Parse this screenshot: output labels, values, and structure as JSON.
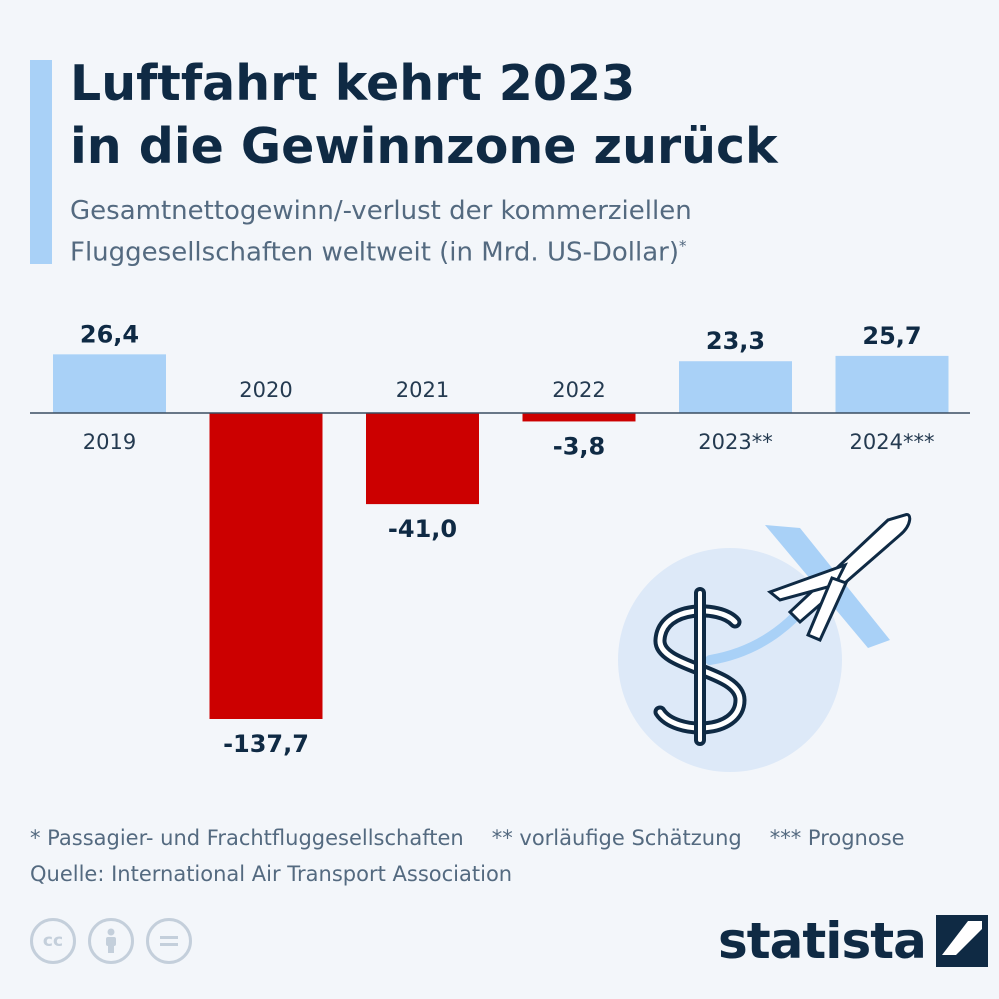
{
  "header": {
    "title_line1": "Luftfahrt kehrt 2023",
    "title_line2": "in die Gewinnzone zurück",
    "subtitle_line1": "Gesamtnettogewinn/-verlust der kommerziellen",
    "subtitle_line2": "Fluggesellschaften weltweit (in Mrd. US-Dollar)",
    "subtitle_mark": "*"
  },
  "chart_data": {
    "type": "bar",
    "categories": [
      "2019",
      "2020",
      "2021",
      "2022",
      "2023**",
      "2024***"
    ],
    "values": [
      26.4,
      -137.7,
      -41.0,
      -3.8,
      23.3,
      25.7
    ],
    "value_labels": [
      "26,4",
      "-137,7",
      "-41,0",
      "-3,8",
      "23,3",
      "25,7"
    ],
    "colors": {
      "positive": "#a9d1f7",
      "negative": "#cc0000"
    },
    "ylim": [
      -140,
      30
    ],
    "grid": false,
    "title": "",
    "xlabel": "",
    "ylabel": ""
  },
  "footnotes": {
    "note1": "* Passagier- und Frachtfluggesellschaften",
    "note2": "** vorläufige Schätzung",
    "note3": "*** Prognose",
    "source": "Quelle: International Air Transport Association"
  },
  "license_icons": [
    "cc-icon",
    "by-icon",
    "nd-icon"
  ],
  "brand": {
    "name": "statista"
  }
}
